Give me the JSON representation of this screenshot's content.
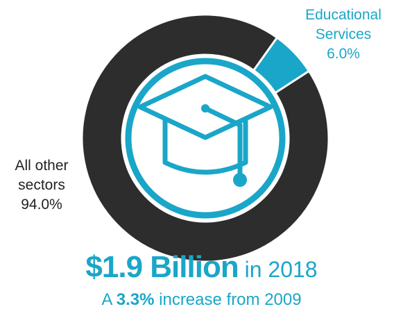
{
  "chart_data": {
    "type": "pie",
    "slices": [
      {
        "label": "Educational Services",
        "value": 6.0,
        "value_label": "6.0%",
        "color": "#1aa6c8"
      },
      {
        "label": "All other sectors",
        "value": 94.0,
        "value_label": "94.0%",
        "color": "#2d2d2d"
      }
    ]
  },
  "labels": {
    "edu_line1": "Educational",
    "edu_line2": "Services",
    "edu_value": "6.0%",
    "other_line1": "All other",
    "other_line2": "sectors",
    "other_value": "94.0%"
  },
  "headline": {
    "amount": "$1.9 Billion",
    "year_text": " in 2018"
  },
  "subline": {
    "prefix": "A ",
    "percent": "3.3%",
    "suffix": " increase from 2009"
  },
  "center_icon": "graduation-cap-icon",
  "colors": {
    "accent": "#1aa6c8",
    "dark": "#2d2d2d",
    "text": "#222222"
  }
}
